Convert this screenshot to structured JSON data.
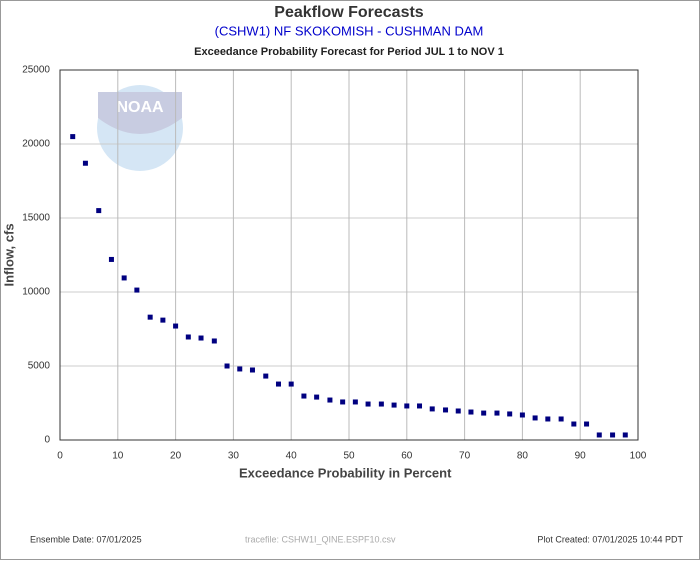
{
  "chart_data": {
    "type": "scatter",
    "title": "Peakflow Forecasts",
    "subtitle": "(CSHW1) NF SKOKOMISH - CUSHMAN DAM",
    "subtitle2": "Exceedance Probability Forecast for Period JUL 1 to NOV 1",
    "xlabel": "Exceedance Probability in Percent",
    "ylabel": "Inflow, cfs",
    "logo_text": "NOAA",
    "footer_left": "Ensemble Date: 07/01/2025",
    "footer_center": "tracefile: CSHW1I_QINE.ESPF10.csv",
    "footer_right": "Plot Created: 07/01/2025 10:44 PDT",
    "color": "#000080",
    "grid": true,
    "xlim": [
      0,
      100
    ],
    "ylim": [
      0,
      25000
    ],
    "xticks": [
      0,
      10,
      20,
      30,
      40,
      50,
      60,
      70,
      80,
      90,
      100
    ],
    "yticks": [
      0,
      5000,
      10000,
      15000,
      20000,
      25000
    ],
    "x": [
      2.2,
      4.4,
      6.7,
      8.9,
      11.1,
      13.3,
      15.6,
      17.8,
      20.0,
      22.2,
      24.4,
      26.7,
      28.9,
      31.1,
      33.3,
      35.6,
      37.8,
      40.0,
      42.2,
      44.4,
      46.7,
      48.9,
      51.1,
      53.3,
      55.6,
      57.8,
      60.0,
      62.2,
      64.4,
      66.7,
      68.9,
      71.1,
      73.3,
      75.6,
      77.8,
      80.0,
      82.2,
      84.4,
      86.7,
      88.9,
      91.1,
      93.3,
      95.6,
      97.8
    ],
    "values": [
      20500,
      18700,
      15500,
      12200,
      10950,
      10130,
      8300,
      8100,
      7700,
      6960,
      6890,
      6690,
      5000,
      4800,
      4730,
      4320,
      3780,
      3780,
      2970,
      2900,
      2700,
      2570,
      2570,
      2430,
      2430,
      2360,
      2300,
      2300,
      2100,
      2030,
      1960,
      1890,
      1820,
      1820,
      1760,
      1690,
      1490,
      1420,
      1420,
      1080,
      1080,
      340,
      340,
      340
    ]
  }
}
